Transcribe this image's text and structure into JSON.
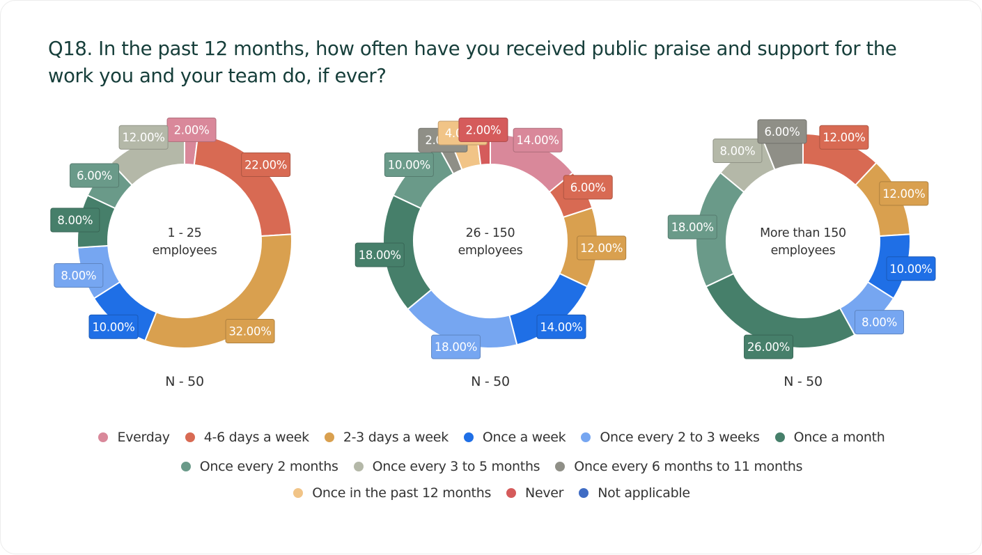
{
  "title": "Q18. In the past 12 months, how often have you received public praise and support for the work you and your team do, if ever?",
  "chart_data": {
    "type": "pie",
    "variant": "donut",
    "categories": [
      "Everday",
      "4-6 days a week",
      "2-3 days a week",
      "Once a week",
      "Once every 2 to 3 weeks",
      "Once a month",
      "Once every 2 months",
      "Once every 3 to 5 months",
      "Once every 6 months to 11 months",
      "Once in the past 12 months",
      "Never",
      "Not applicable"
    ],
    "colors": [
      "#d9889a",
      "#d86a53",
      "#d9a04f",
      "#1f6fe6",
      "#76a6f1",
      "#467f6a",
      "#6a9a89",
      "#b4b8a8",
      "#8f8f87",
      "#f1c487",
      "#d55b5b",
      "#3f6cc4"
    ],
    "label_format": "percent_2dp",
    "series": [
      {
        "name": "1 - 25 employees",
        "n_label": "N - 50",
        "values": [
          2,
          22,
          32,
          10,
          8,
          8,
          6,
          12,
          0,
          0,
          0,
          0
        ]
      },
      {
        "name": "26 - 150 employees",
        "n_label": "N - 50",
        "values": [
          14,
          6,
          12,
          14,
          18,
          18,
          10,
          0,
          2,
          4,
          2,
          0
        ]
      },
      {
        "name": "More than 150 employees",
        "n_label": "N - 50",
        "values": [
          0,
          12,
          12,
          10,
          8,
          26,
          18,
          8,
          6,
          0,
          0,
          0
        ]
      }
    ],
    "legend_position": "bottom"
  },
  "legend_rows": [
    [
      0,
      1,
      2,
      3,
      4,
      5
    ],
    [
      6,
      7,
      8
    ],
    [
      9,
      10,
      11
    ]
  ]
}
